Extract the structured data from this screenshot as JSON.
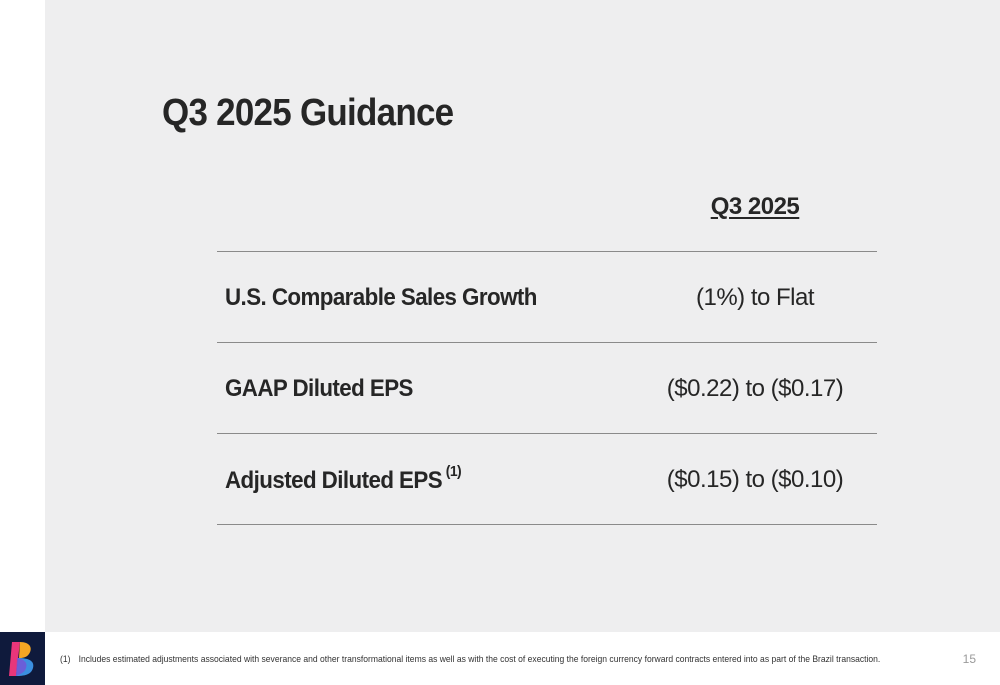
{
  "slide": {
    "title": "Q3 2025 Guidance",
    "column_header": "Q3 2025",
    "rows": [
      {
        "label": "U.S. Comparable Sales Growth",
        "footnote_ref": "",
        "value": "(1%) to Flat"
      },
      {
        "label": "GAAP Diluted EPS",
        "footnote_ref": "",
        "value": "($0.22) to ($0.17)"
      },
      {
        "label": "Adjusted Diluted EPS",
        "footnote_ref": "(1)",
        "value": "($0.15) to ($0.10)"
      }
    ]
  },
  "footer": {
    "footnote_number": "(1)",
    "footnote_text": "Includes estimated adjustments associated with severance and other transformational items as well as with the cost of executing the foreign currency forward contracts entered into as part of the Brazil transaction.",
    "page_number": "15",
    "logo_icon": "brand-logo-icon"
  },
  "colors": {
    "background": "#eeeeef",
    "text": "#262626",
    "logo_background": "#0f1a3c",
    "rule": "#8a8a8a"
  }
}
